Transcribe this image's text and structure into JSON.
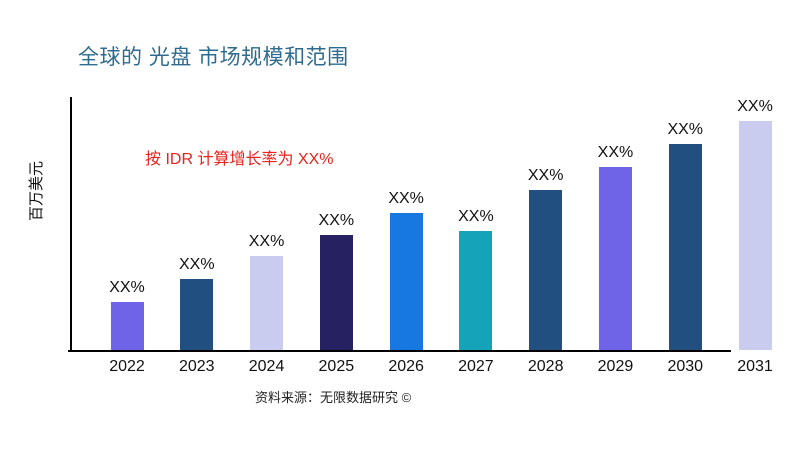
{
  "title": "全球的 光盘 市场规模和范围",
  "y_axis_label": "百万美元",
  "annotation": "按 IDR 计算增长率为 XX%",
  "source": "资料来源：无限数据研究 ©",
  "colors": {
    "title": "#2E6B8E",
    "annotation": "#E8231C",
    "axis": "#000000",
    "background": "#FFFFFF"
  },
  "chart_data": {
    "type": "bar",
    "title": "全球的 光盘 市场规模和范围",
    "xlabel": "",
    "ylabel": "百万美元",
    "categories": [
      "2022",
      "2023",
      "2024",
      "2025",
      "2026",
      "2027",
      "2028",
      "2029",
      "2030",
      "2031"
    ],
    "values": [
      "XX%",
      "XX%",
      "XX%",
      "XX%",
      "XX%",
      "XX%",
      "XX%",
      "XX%",
      "XX%",
      "XX%"
    ],
    "relative_heights_pct": [
      21,
      31,
      41,
      50,
      60,
      52,
      70,
      80,
      90,
      100
    ],
    "bar_colors": [
      "#6F63E8",
      "#204F80",
      "#C9CCEF",
      "#262262",
      "#1678E0",
      "#14A3B8",
      "#204F80",
      "#6F63E8",
      "#204F80",
      "#C9CCEF"
    ],
    "grid": false,
    "legend": false,
    "annotation": "按 IDR 计算增长率为 XX%"
  }
}
